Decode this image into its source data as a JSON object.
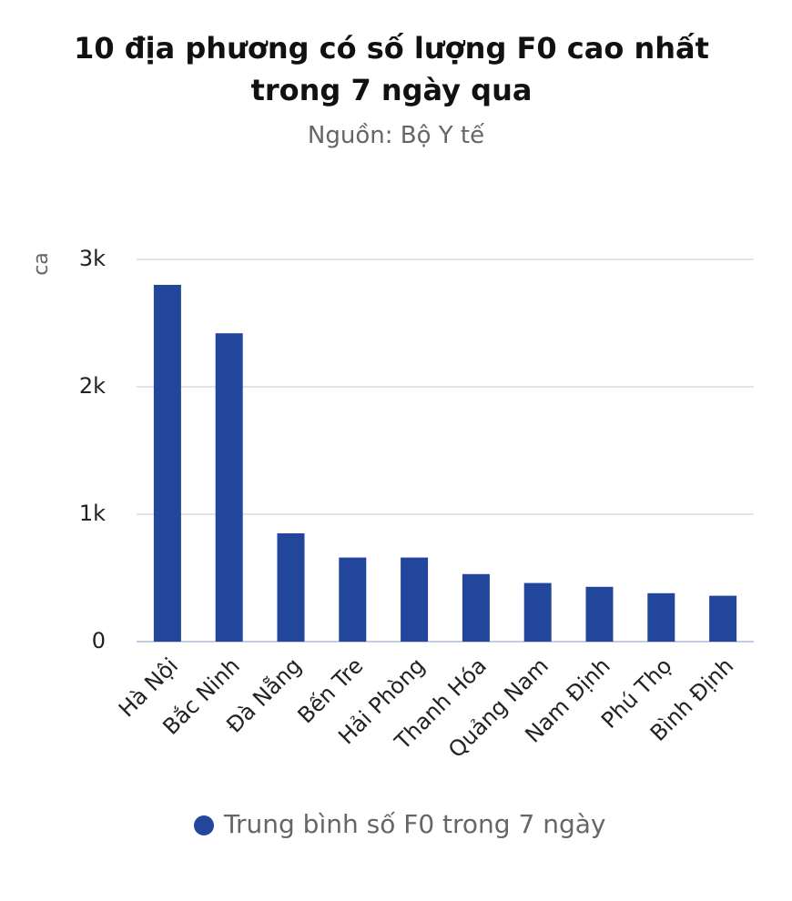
{
  "chart_data": {
    "type": "bar",
    "title": "10 địa phương có số lượng F0 cao nhất trong 7 ngày qua",
    "subtitle": "Nguồn: Bộ Y tế",
    "y_label": "ca",
    "categories": [
      "Hà Nội",
      "Bắc Ninh",
      "Đà Nẵng",
      "Bến Tre",
      "Hải Phòng",
      "Thanh Hóa",
      "Quảng Nam",
      "Nam Định",
      "Phú Thọ",
      "Bình Định"
    ],
    "series": [
      {
        "name": "Trung bình số F0 trong 7 ngày",
        "color": "#22469b",
        "values": [
          2800,
          2420,
          850,
          660,
          660,
          530,
          460,
          430,
          380,
          360
        ]
      }
    ],
    "ylim": [
      0,
      3000
    ],
    "yticks": [
      0,
      {
        "value": 1000,
        "label": "1k"
      },
      {
        "value": 2000,
        "label": "2k"
      },
      {
        "value": 3000,
        "label": "3k"
      }
    ],
    "grid": true
  }
}
